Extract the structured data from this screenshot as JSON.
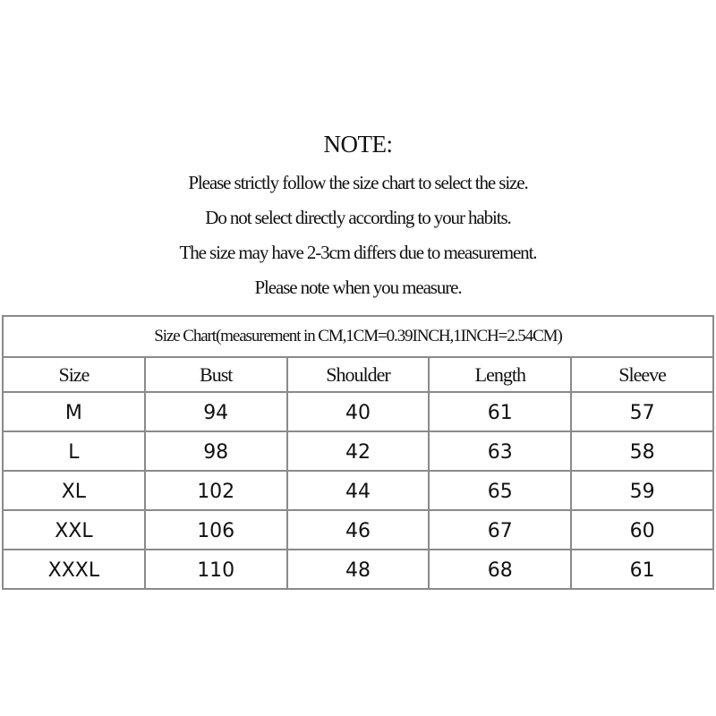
{
  "note": {
    "title": "NOTE:",
    "lines": [
      "Please strictly follow the size chart to select the size.",
      "Do not select directly according to your habits.",
      "The size may have 2-3cm differs due to measurement.",
      "Please note when you measure."
    ]
  },
  "size_chart": {
    "caption": "Size Chart(measurement in CM,1CM=0.39INCH,1INCH=2.54CM)",
    "headers": [
      "Size",
      "Bust",
      "Shoulder",
      "Length",
      "Sleeve"
    ],
    "rows": [
      [
        "M",
        "94",
        "40",
        "61",
        "57"
      ],
      [
        "L",
        "98",
        "42",
        "63",
        "58"
      ],
      [
        "XL",
        "102",
        "44",
        "65",
        "59"
      ],
      [
        "XXL",
        "106",
        "46",
        "67",
        "60"
      ],
      [
        "XXXL",
        "110",
        "48",
        "68",
        "61"
      ]
    ]
  }
}
